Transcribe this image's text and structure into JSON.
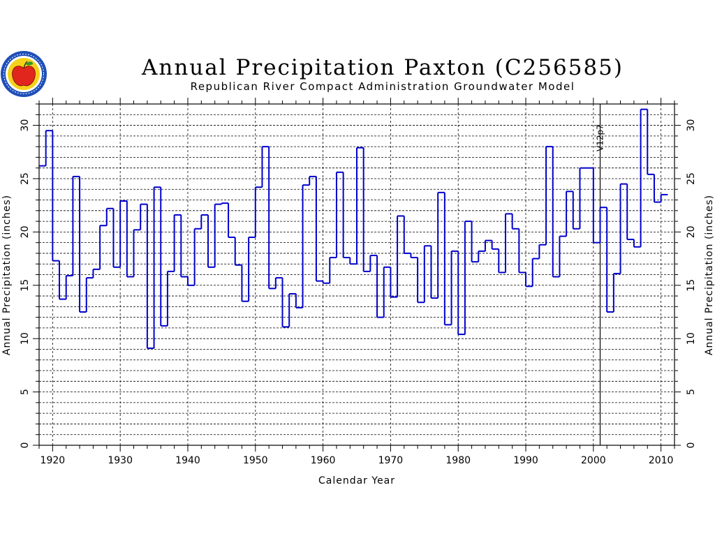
{
  "chart_data": {
    "type": "line",
    "step": true,
    "title": "Annual Precipitation Paxton (C256585)",
    "subtitle": "Republican River Compact Administration Groundwater Model",
    "xlabel": "Calendar Year",
    "ylabel": "Annual Precipitation (inches)",
    "ylabel_right": "Annual Precipitation (inches)",
    "xlim": [
      1918,
      2012
    ],
    "ylim": [
      0,
      32
    ],
    "x_ticks": [
      1920,
      1930,
      1940,
      1950,
      1960,
      1970,
      1980,
      1990,
      2000,
      2010
    ],
    "y_ticks": [
      0,
      5,
      10,
      15,
      20,
      25,
      30
    ],
    "grid": true,
    "series_color": "#0000cc",
    "years": [
      1918,
      1919,
      1920,
      1921,
      1922,
      1923,
      1924,
      1925,
      1926,
      1927,
      1928,
      1929,
      1930,
      1931,
      1932,
      1933,
      1934,
      1935,
      1936,
      1937,
      1938,
      1939,
      1940,
      1941,
      1942,
      1943,
      1944,
      1945,
      1946,
      1947,
      1948,
      1949,
      1950,
      1951,
      1952,
      1953,
      1954,
      1955,
      1956,
      1957,
      1958,
      1959,
      1960,
      1961,
      1962,
      1963,
      1964,
      1965,
      1966,
      1967,
      1968,
      1969,
      1970,
      1971,
      1972,
      1973,
      1974,
      1975,
      1976,
      1977,
      1978,
      1979,
      1980,
      1981,
      1982,
      1983,
      1984,
      1985,
      1986,
      1987,
      1988,
      1989,
      1990,
      1991,
      1992,
      1993,
      1994,
      1995,
      1996,
      1997,
      1998,
      1999,
      2000,
      2001,
      2002,
      2003,
      2004,
      2005,
      2006,
      2007,
      2008,
      2009,
      2010
    ],
    "values": [
      26.2,
      29.5,
      17.3,
      13.7,
      15.9,
      25.2,
      12.5,
      15.7,
      16.5,
      20.6,
      22.2,
      16.7,
      22.9,
      15.8,
      20.2,
      22.6,
      9.1,
      24.2,
      11.2,
      16.3,
      21.6,
      15.8,
      15.0,
      20.3,
      21.6,
      16.7,
      22.6,
      22.7,
      19.5,
      16.9,
      13.5,
      19.5,
      24.2,
      28.0,
      14.7,
      15.7,
      11.1,
      14.2,
      12.9,
      24.4,
      25.2,
      15.4,
      15.2,
      17.6,
      25.6,
      17.6,
      17.0,
      27.9,
      16.3,
      17.8,
      12.0,
      16.7,
      13.9,
      21.5,
      18.0,
      17.6,
      13.4,
      18.7,
      13.8,
      23.7,
      11.3,
      18.2,
      10.4,
      21.0,
      17.2,
      18.2,
      19.2,
      18.4,
      16.2,
      21.7,
      20.3,
      16.2,
      14.9,
      17.5,
      18.8,
      28.0,
      15.8,
      19.6,
      23.8,
      20.3,
      26.0,
      26.0,
      19.0,
      22.3,
      12.5,
      16.1,
      24.5,
      19.3,
      18.6,
      31.5,
      25.4,
      22.8,
      23.5
    ],
    "vline": {
      "x": 2001,
      "label": "V12p7"
    }
  },
  "logo": {
    "name": "rrca-logo"
  }
}
